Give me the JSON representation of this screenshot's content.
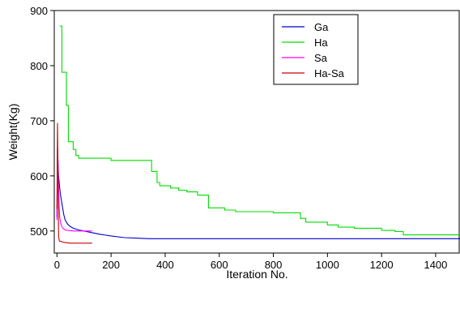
{
  "chart_data": {
    "type": "line",
    "title": "",
    "xlabel": "Iteration No.",
    "ylabel": "Weight(Kg)",
    "xlim": [
      -10,
      1490
    ],
    "ylim": [
      460,
      900
    ],
    "xticks": [
      0,
      200,
      400,
      600,
      800,
      1000,
      1200,
      1400
    ],
    "yticks": [
      500,
      600,
      700,
      800,
      900
    ],
    "grid": false,
    "legend": "top-right",
    "series": [
      {
        "name": "Ga",
        "color": "#0000cc",
        "step": false,
        "x": [
          0,
          2,
          4,
          6,
          9,
          12,
          15,
          20,
          25,
          30,
          40,
          50,
          60,
          80,
          100,
          130,
          160,
          200,
          250,
          300,
          340,
          400,
          600,
          800,
          1000,
          1200,
          1490
        ],
        "y": [
          525,
          650,
          620,
          600,
          585,
          570,
          560,
          545,
          530,
          520,
          512,
          508,
          505,
          502,
          500,
          497,
          494,
          491,
          488,
          487,
          486,
          486,
          486,
          486,
          486,
          486,
          486
        ]
      },
      {
        "name": "Ha",
        "color": "#00dd00",
        "step": true,
        "x": [
          10,
          18,
          35,
          42,
          60,
          70,
          80,
          200,
          350,
          370,
          380,
          420,
          450,
          480,
          520,
          560,
          620,
          660,
          800,
          900,
          920,
          1000,
          1040,
          1100,
          1200,
          1250,
          1280,
          1490
        ],
        "y": [
          872,
          788,
          728,
          662,
          648,
          637,
          632,
          628,
          608,
          588,
          582,
          578,
          574,
          571,
          565,
          542,
          538,
          535,
          533,
          523,
          516,
          511,
          507,
          505,
          501,
          499,
          493,
          492
        ]
      },
      {
        "name": "Sa",
        "color": "#ff00ff",
        "step": false,
        "x": [
          0,
          3,
          6,
          8,
          10,
          15,
          20,
          30,
          40,
          60,
          80,
          100,
          120,
          130
        ],
        "y": [
          520,
          648,
          580,
          545,
          525,
          512,
          506,
          502,
          501,
          500,
          500,
          500,
          500,
          500
        ]
      },
      {
        "name": "Ha-Sa",
        "color": "#cc0000",
        "step": false,
        "x": [
          0,
          2,
          4,
          6,
          9,
          15,
          20,
          30,
          50,
          80,
          100,
          130
        ],
        "y": [
          540,
          696,
          600,
          490,
          482,
          481,
          480,
          479,
          478,
          478,
          478,
          478
        ]
      }
    ]
  }
}
